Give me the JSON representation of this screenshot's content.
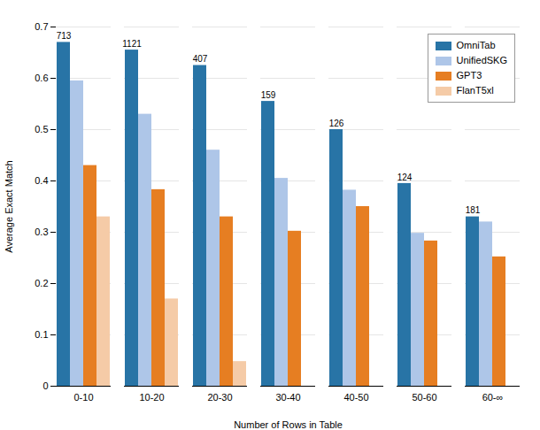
{
  "chart_data": {
    "type": "bar",
    "xlabel": "Number of Rows in Table",
    "ylabel": "Average Exact Match",
    "categories": [
      "0-10",
      "10-20",
      "20-30",
      "30-40",
      "40-50",
      "50-60",
      "60-∞"
    ],
    "series": [
      {
        "name": "OmniTab",
        "color": "#2874a6",
        "values": [
          0.67,
          0.655,
          0.625,
          0.555,
          0.5,
          0.395,
          0.33
        ]
      },
      {
        "name": "UnifiedSKG",
        "color": "#aec6e8",
        "values": [
          0.595,
          0.53,
          0.46,
          0.405,
          0.382,
          0.298,
          0.32
        ]
      },
      {
        "name": "GPT3",
        "color": "#e67e22",
        "values": [
          0.43,
          0.383,
          0.33,
          0.302,
          0.35,
          0.283,
          0.252
        ]
      },
      {
        "name": "FlanT5xl",
        "color": "#f5cba7",
        "values": [
          0.33,
          0.17,
          0.048,
          0.0,
          0.0,
          0.0,
          0.0
        ]
      }
    ],
    "counts": [
      713,
      1121,
      407,
      159,
      126,
      124,
      181
    ],
    "ylim": [
      0.0,
      0.7
    ],
    "yticks": [
      0,
      0.1,
      0.2,
      0.3,
      0.4,
      0.5,
      0.6,
      0.7
    ],
    "grid": true,
    "legend": "upper right"
  }
}
